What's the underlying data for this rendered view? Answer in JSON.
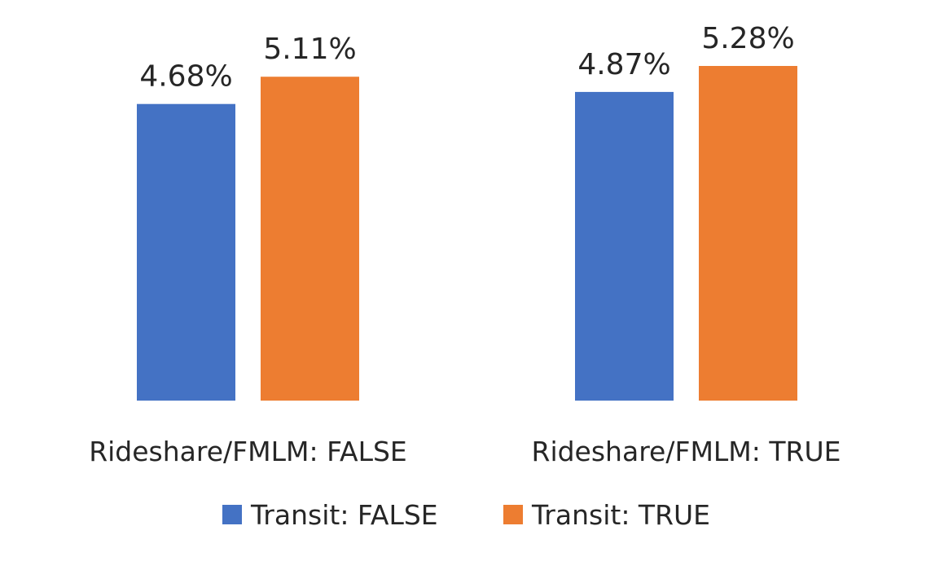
{
  "chart_data": {
    "type": "bar",
    "categories": [
      "Rideshare/FMLM: FALSE",
      "Rideshare/FMLM: TRUE"
    ],
    "series": [
      {
        "name": "Transit: FALSE",
        "color": "#4472c4",
        "values": [
          4.68,
          4.87
        ],
        "labels": [
          "4.68%",
          "4.87%"
        ]
      },
      {
        "name": "Transit: TRUE",
        "color": "#ed7d31",
        "values": [
          5.11,
          5.28
        ],
        "labels": [
          "5.11%",
          "5.28%"
        ]
      }
    ],
    "ylim": [
      0,
      5.28
    ],
    "grid": false,
    "legend_position": "bottom"
  }
}
